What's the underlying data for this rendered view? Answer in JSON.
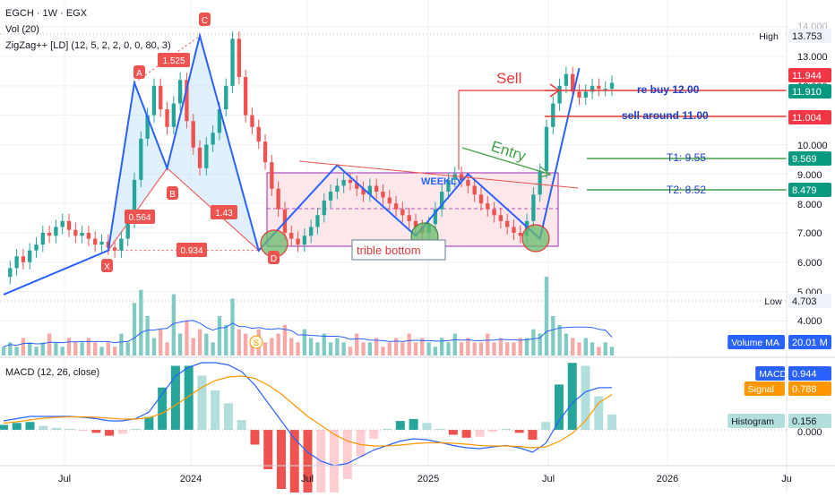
{
  "header": {
    "symbol_line": "EGCH · 1W · EGX",
    "vol_line": "Vol (20)",
    "zigzag_line": "ZigZag++ [LD] (12, 5, 2, 2, 0, 0, 80, 3)",
    "macd_line": "MACD (12, 26, close)"
  },
  "colors": {
    "up": "#26a69a",
    "down": "#ef5350",
    "pattern": "#ef5350",
    "zigzag": "#2962ff",
    "rect_stroke": "#9c27b0",
    "rect_fill": "#fde7ea",
    "green_line": "#4caf50",
    "red_line": "#e53935",
    "macd": "#2962ff",
    "signal": "#ff9800",
    "grid": "#eef0f3"
  },
  "price_axis": {
    "ticks": [
      "13.000",
      "12.000",
      "11.000",
      "10.000",
      "9.000",
      "8.000",
      "7.000",
      "6.000",
      "5.000",
      "4.000",
      "0.000"
    ],
    "top_tick": "14.000",
    "badges": [
      {
        "label": "High",
        "value": "13.753",
        "kind": "text"
      },
      {
        "label": "",
        "value": "11.944",
        "kind": "red"
      },
      {
        "label": "",
        "value": "11.910",
        "kind": "green"
      },
      {
        "label": "",
        "value": "11.004",
        "kind": "red"
      },
      {
        "label": "",
        "value": "9.569",
        "kind": "green"
      },
      {
        "label": "",
        "value": "8.479",
        "kind": "green"
      },
      {
        "label": "Low",
        "value": "4.703",
        "kind": "text"
      },
      {
        "label": "Volume MA",
        "value": "20.01 M",
        "kind": "blue"
      },
      {
        "label": "MACD",
        "value": "0.944",
        "kind": "blue"
      },
      {
        "label": "Signal",
        "value": "0.788",
        "kind": "orange"
      },
      {
        "label": "Histogram",
        "value": "0.156",
        "kind": "teal"
      }
    ]
  },
  "time_axis": {
    "labels": [
      "Jul",
      "2024",
      "Jul",
      "2025",
      "Jul",
      "2026",
      "Ju"
    ]
  },
  "annotations": {
    "sell": "Sell",
    "rebuy": "re buy 12.00",
    "sell_around": "sell around 11.00",
    "entry": "Entry",
    "t1": "T1: 9.55",
    "t2": "T2: 8.52",
    "weekly": "WEEKLY",
    "triple": "trible bottom",
    "points": {
      "X": "X",
      "A": "A",
      "B": "B",
      "C": "C",
      "D": "D"
    },
    "ratios": {
      "xa_c": "1.525",
      "ab": "0.564",
      "bc": "1.43",
      "xd": "0.934"
    },
    "dividend": "S"
  },
  "chart_data": [
    {
      "type": "line",
      "title": "EGCH · 1W · EGX",
      "ylim": [
        3.0,
        14.2
      ],
      "ohlc_weekly_approx": [
        5.5,
        5.8,
        6.2,
        6.0,
        6.4,
        6.6,
        7.0,
        6.9,
        7.2,
        7.4,
        7.1,
        6.9,
        7.0,
        6.8,
        6.6,
        6.7,
        6.5,
        6.4,
        6.8,
        7.4,
        8.8,
        10.2,
        11.0,
        12.0,
        11.2,
        10.6,
        11.4,
        12.2,
        10.8,
        9.9,
        9.2,
        10.0,
        10.4,
        11.2,
        12.0,
        13.6,
        12.3,
        11.0,
        10.6,
        10.1,
        9.4,
        8.5,
        7.8,
        7.0,
        6.8,
        6.6,
        6.9,
        7.2,
        7.6,
        8.1,
        8.4,
        8.6,
        8.8,
        8.7,
        8.5,
        8.3,
        8.6,
        8.4,
        8.2,
        8.0,
        7.8,
        7.6,
        7.4,
        7.2,
        7.0,
        7.3,
        7.8,
        8.4,
        8.8,
        9.0,
        8.8,
        8.6,
        8.3,
        8.0,
        7.8,
        7.6,
        7.4,
        7.2,
        7.0,
        6.9,
        7.4,
        8.3,
        9.1,
        10.6,
        11.4,
        12.0,
        12.4,
        11.8,
        11.6,
        11.8,
        12.0,
        11.9,
        11.9,
        12.1
      ],
      "zigzag": [
        [
          0,
          4.9
        ],
        [
          16,
          6.4
        ],
        [
          20,
          12.1
        ],
        [
          25,
          9.2
        ],
        [
          30,
          13.7
        ],
        [
          39,
          6.4
        ],
        [
          51,
          9.3
        ],
        [
          63,
          6.9
        ],
        [
          71,
          9.0
        ],
        [
          82,
          6.8
        ],
        [
          88,
          12.6
        ]
      ],
      "harmonic_pattern": {
        "X": 6.4,
        "A": 12.1,
        "B": 9.2,
        "C": 13.7,
        "D": 6.4,
        "ratios": {
          "B": 0.564,
          "C": 1.525,
          "D_from_BC": 1.43,
          "D_from_XA": 0.934
        }
      },
      "levels": {
        "rebuy": 12.0,
        "sell_around": 11.0,
        "T1": 9.55,
        "T2": 8.52,
        "high": 13.753,
        "low": 4.703
      }
    },
    {
      "type": "bar",
      "title": "Vol (20)",
      "series": [
        {
          "name": "Volume MA",
          "values": [
            20.01
          ]
        }
      ],
      "volumes_relative": [
        2,
        3,
        2,
        4,
        3,
        2,
        3,
        5,
        3,
        2,
        4,
        3,
        3,
        4,
        3,
        2,
        3,
        2,
        5,
        3,
        12,
        15,
        9,
        4,
        6,
        3,
        14,
        5,
        8,
        4,
        6,
        5,
        3,
        9,
        7,
        13,
        6,
        5,
        4,
        6,
        3,
        4,
        5,
        7,
        4,
        3,
        6,
        4,
        3,
        5,
        3,
        4,
        3,
        2,
        5,
        3,
        3,
        4,
        2,
        3,
        4,
        3,
        5,
        3,
        4,
        3,
        2,
        4,
        3,
        5,
        3,
        4,
        3,
        3,
        5,
        3,
        4,
        3,
        3,
        4,
        4,
        6,
        5,
        18,
        9,
        7,
        5,
        4,
        3,
        4,
        3,
        2,
        3,
        2
      ]
    },
    {
      "type": "line",
      "title": "MACD (12, 26, close)",
      "series": [
        {
          "name": "MACD",
          "values": [
            0.2,
            0.25,
            0.3,
            0.3,
            0.3,
            0.3,
            0.28,
            0.25,
            0.2,
            0.2,
            0.25,
            0.4,
            0.8,
            1.2,
            1.4,
            1.5,
            1.5,
            1.45,
            1.3,
            1.0,
            0.6,
            0.2,
            -0.2,
            -0.5,
            -0.7,
            -0.8,
            -0.75,
            -0.6,
            -0.45,
            -0.35,
            -0.25,
            -0.2,
            -0.22,
            -0.28,
            -0.35,
            -0.4,
            -0.42,
            -0.38,
            -0.35,
            -0.4,
            -0.5,
            -0.3,
            0.2,
            0.6,
            0.85,
            0.94,
            0.944
          ]
        },
        {
          "name": "Signal",
          "values": [
            0.15,
            0.18,
            0.22,
            0.26,
            0.28,
            0.29,
            0.29,
            0.28,
            0.26,
            0.24,
            0.24,
            0.27,
            0.37,
            0.55,
            0.75,
            0.95,
            1.1,
            1.18,
            1.2,
            1.15,
            1.0,
            0.8,
            0.55,
            0.3,
            0.1,
            -0.1,
            -0.25,
            -0.33,
            -0.36,
            -0.36,
            -0.34,
            -0.31,
            -0.29,
            -0.29,
            -0.3,
            -0.32,
            -0.35,
            -0.36,
            -0.36,
            -0.37,
            -0.4,
            -0.38,
            -0.26,
            -0.08,
            0.2,
            0.6,
            0.788
          ]
        }
      ],
      "histogram_last": 0.156
    }
  ]
}
